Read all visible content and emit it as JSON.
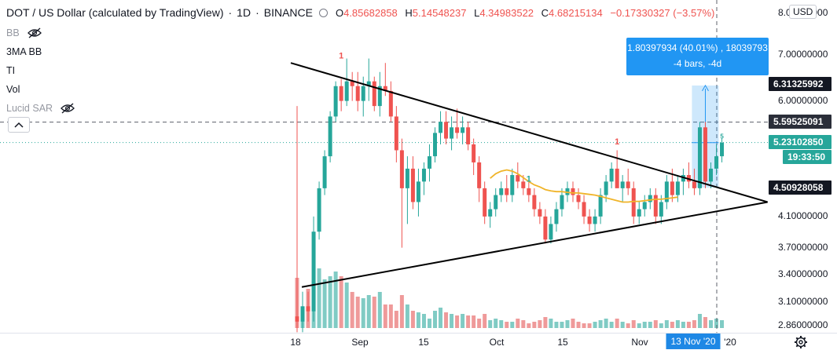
{
  "header": {
    "title": "DOT / US Dollar (calculated by TradingView)",
    "interval": "1D",
    "exchange": "BINANCE",
    "ohlc": [
      {
        "label": "O",
        "value": "4.85682858"
      },
      {
        "label": "H",
        "value": "5.14548237"
      },
      {
        "label": "L",
        "value": "4.34983522"
      },
      {
        "label": "C",
        "value": "4.68215134"
      }
    ],
    "change": "−0.17330327 (−3.57%)"
  },
  "indicators": [
    {
      "label": "BB",
      "hidden": true
    },
    {
      "label": "3MA BB",
      "hidden": false
    },
    {
      "label": "TI",
      "hidden": false
    },
    {
      "label": "Vol",
      "hidden": false
    },
    {
      "label": "Lucid SAR",
      "hidden": true
    }
  ],
  "currency": "USD",
  "y_axis": {
    "ticks": [
      "8.00000000",
      "7.00000000",
      "6.00000000",
      "4.10000000",
      "3.70000000",
      "3.40000000",
      "3.10000000",
      "2.86000000"
    ],
    "price_tags": [
      {
        "text": "6.31325992",
        "color": "#131722"
      },
      {
        "text": "5.59525091",
        "color": "#2a2e39"
      },
      {
        "text": "5.23102850",
        "color": "#26a69a"
      },
      {
        "text": "19:33:50",
        "color": "#26a69a"
      },
      {
        "text": "4.50928058",
        "color": "#131722"
      }
    ]
  },
  "x_axis": {
    "ticks": [
      "18",
      "Sep",
      "15",
      "Oct",
      "15",
      "Nov",
      "'20"
    ],
    "cursor_label": "13 Nov '20"
  },
  "measure": {
    "line1": "1.80397934 (40.01%) , 18039793",
    "line2": "-4 bars, -4d"
  },
  "chart_markers": [
    {
      "text": "1",
      "color": "#ef5350"
    },
    {
      "text": "1",
      "color": "#26a69a"
    },
    {
      "text": "1",
      "color": "#ef5350"
    },
    {
      "text": "5",
      "color": "#26a69a"
    }
  ],
  "colors": {
    "up": "#26a69a",
    "down": "#ef5350",
    "vol_up": "#80cbc4",
    "vol_down": "#ef9a9a",
    "ma": "#f0b429",
    "trend": "#000000",
    "accent": "#2196f3"
  },
  "chart_data": {
    "type": "candlestick",
    "series": [
      {
        "name": "DOT / US Dollar",
        "fields": [
          "open",
          "high",
          "low",
          "close"
        ],
        "values": [
          [
            2.95,
            5.9,
            2.8,
            2.9
          ],
          [
            2.9,
            3.2,
            2.8,
            3.05
          ],
          [
            3.05,
            3.2,
            2.9,
            3.0
          ],
          [
            3.0,
            4.1,
            2.9,
            3.9
          ],
          [
            3.9,
            4.6,
            3.8,
            4.5
          ],
          [
            4.5,
            5.1,
            4.4,
            5.0
          ],
          [
            5.0,
            5.8,
            4.9,
            5.7
          ],
          [
            5.7,
            6.4,
            5.6,
            6.3
          ],
          [
            6.3,
            6.45,
            5.8,
            6.0
          ],
          [
            6.0,
            6.9,
            5.9,
            6.4
          ],
          [
            6.4,
            6.6,
            6.0,
            6.3
          ],
          [
            6.3,
            6.6,
            5.8,
            6.0
          ],
          [
            6.0,
            6.5,
            5.7,
            6.3
          ],
          [
            6.3,
            6.9,
            6.0,
            6.4
          ],
          [
            6.4,
            6.5,
            5.8,
            5.9
          ],
          [
            5.9,
            6.6,
            5.7,
            6.3
          ],
          [
            6.3,
            6.8,
            6.1,
            6.2
          ],
          [
            6.2,
            6.4,
            5.6,
            5.7
          ],
          [
            5.7,
            5.9,
            4.9,
            5.1
          ],
          [
            5.1,
            5.3,
            3.7,
            4.5
          ],
          [
            4.5,
            5.0,
            4.0,
            4.8
          ],
          [
            4.8,
            5.0,
            4.2,
            4.3
          ],
          [
            4.3,
            4.8,
            4.1,
            4.6
          ],
          [
            4.6,
            4.9,
            4.4,
            4.8
          ],
          [
            4.8,
            5.2,
            4.6,
            5.0
          ],
          [
            5.0,
            5.5,
            4.9,
            5.4
          ],
          [
            5.4,
            5.8,
            5.2,
            5.6
          ],
          [
            5.6,
            5.8,
            5.2,
            5.3
          ],
          [
            5.3,
            5.7,
            5.1,
            5.5
          ],
          [
            5.5,
            5.85,
            5.3,
            5.4
          ],
          [
            5.4,
            5.7,
            5.2,
            5.5
          ],
          [
            5.5,
            5.6,
            5.1,
            5.2
          ],
          [
            5.2,
            5.3,
            4.7,
            4.9
          ],
          [
            4.9,
            5.0,
            4.3,
            4.5
          ],
          [
            4.5,
            4.6,
            4.0,
            4.1
          ],
          [
            4.1,
            4.3,
            3.95,
            4.2
          ],
          [
            4.2,
            4.5,
            4.1,
            4.4
          ],
          [
            4.4,
            4.6,
            4.3,
            4.5
          ],
          [
            4.5,
            4.7,
            4.3,
            4.4
          ],
          [
            4.4,
            4.8,
            4.3,
            4.7
          ],
          [
            4.7,
            4.9,
            4.5,
            4.6
          ],
          [
            4.6,
            4.7,
            4.4,
            4.5
          ],
          [
            4.5,
            4.6,
            4.3,
            4.4
          ],
          [
            4.4,
            4.5,
            4.1,
            4.2
          ],
          [
            4.2,
            4.3,
            4.0,
            4.1
          ],
          [
            4.1,
            4.2,
            3.75,
            3.8
          ],
          [
            3.8,
            4.1,
            3.75,
            4.0
          ],
          [
            4.0,
            4.3,
            3.9,
            4.2
          ],
          [
            4.2,
            4.5,
            4.1,
            4.4
          ],
          [
            4.4,
            4.6,
            4.3,
            4.5
          ],
          [
            4.5,
            4.6,
            4.3,
            4.4
          ],
          [
            4.4,
            4.5,
            4.2,
            4.3
          ],
          [
            4.3,
            4.4,
            4.0,
            4.1
          ],
          [
            4.1,
            4.2,
            3.9,
            4.0
          ],
          [
            4.0,
            4.2,
            3.9,
            4.1
          ],
          [
            4.1,
            4.5,
            4.0,
            4.4
          ],
          [
            4.4,
            4.7,
            4.3,
            4.6
          ],
          [
            4.6,
            4.9,
            4.5,
            4.8
          ],
          [
            4.8,
            5.1,
            4.7,
            4.5
          ],
          [
            4.5,
            4.7,
            4.3,
            4.6
          ],
          [
            4.6,
            4.8,
            4.4,
            4.5
          ],
          [
            4.5,
            4.6,
            4.0,
            4.1
          ],
          [
            4.1,
            4.3,
            4.0,
            4.2
          ],
          [
            4.2,
            4.4,
            4.1,
            4.3
          ],
          [
            4.3,
            4.5,
            4.2,
            4.4
          ],
          [
            4.4,
            4.5,
            4.0,
            4.1
          ],
          [
            4.1,
            4.4,
            4.0,
            4.3
          ],
          [
            4.3,
            4.7,
            4.2,
            4.6
          ],
          [
            4.6,
            4.8,
            4.3,
            4.4
          ],
          [
            4.4,
            4.7,
            4.3,
            4.6
          ],
          [
            4.6,
            4.8,
            4.4,
            4.7
          ],
          [
            4.7,
            4.9,
            4.5,
            4.6
          ],
          [
            4.6,
            4.8,
            4.4,
            4.5
          ],
          [
            4.5,
            5.6,
            4.4,
            5.5
          ],
          [
            5.5,
            5.6,
            4.5,
            4.6
          ],
          [
            4.6,
            4.9,
            4.5,
            4.8
          ],
          [
            4.8,
            5.2,
            4.7,
            5.0
          ],
          [
            5.0,
            5.3,
            4.9,
            5.23
          ]
        ]
      }
    ],
    "volume": [
      3.2,
      1.3,
      2.5,
      3.0,
      3.8,
      3.1,
      3.3,
      3.6,
      3.3,
      2.9,
      2.3,
      2.0,
      1.9,
      2.1,
      2.0,
      2.3,
      1.5,
      1.5,
      1.1,
      2.1,
      1.5,
      1.1,
      1.0,
      0.9,
      0.6,
      1.1,
      1.3,
      1.0,
      0.9,
      0.8,
      0.9,
      0.8,
      0.8,
      0.6,
      0.9,
      0.5,
      0.6,
      0.5,
      0.4,
      0.4,
      0.6,
      0.5,
      0.3,
      0.4,
      0.5,
      0.7,
      0.6,
      0.4,
      0.4,
      0.5,
      0.6,
      0.4,
      0.3,
      0.3,
      0.4,
      0.5,
      0.6,
      0.4,
      0.6,
      0.4,
      0.3,
      0.5,
      0.3,
      0.4,
      0.4,
      0.5,
      0.3,
      0.5,
      0.4,
      0.5,
      0.4,
      0.4,
      0.5,
      0.9,
      0.7,
      0.5,
      0.6,
      0.5
    ],
    "moving_average": [
      4.65,
      4.72,
      4.76,
      4.78,
      4.76,
      4.72,
      4.66,
      4.6,
      4.55,
      4.52,
      4.48,
      4.46,
      4.45,
      4.45,
      4.44,
      4.43,
      4.43,
      4.42,
      4.41,
      4.4,
      4.38,
      4.36,
      4.34,
      4.32,
      4.3,
      4.3,
      4.31,
      4.31,
      4.32,
      4.33,
      4.34,
      4.34,
      4.35,
      4.36,
      4.37
    ],
    "trendlines": [
      {
        "name": "upper",
        "from": [
          0,
          6.8
        ],
        "to": [
          85,
          4.3
        ]
      },
      {
        "name": "lower",
        "from": [
          2,
          3.25
        ],
        "to": [
          85,
          4.3
        ]
      }
    ],
    "horizontal_lines": [
      5.59525091,
      5.2310285
    ],
    "y_scale": "log"
  }
}
